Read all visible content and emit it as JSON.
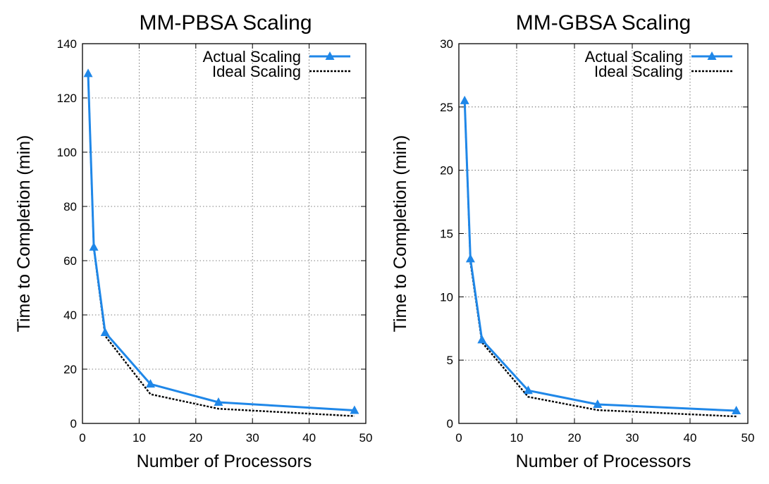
{
  "chart_data": [
    {
      "type": "line",
      "title": "MM-PBSA Scaling",
      "xlabel": "Number of Processors",
      "ylabel": "Time to Completion (min)",
      "xlim": [
        0,
        50
      ],
      "ylim": [
        0,
        140
      ],
      "xticks": [
        0,
        10,
        20,
        30,
        40,
        50
      ],
      "yticks": [
        0,
        20,
        40,
        60,
        80,
        100,
        120,
        140
      ],
      "grid": true,
      "legend_position": "top-right",
      "x": [
        1,
        2,
        4,
        12,
        24,
        48
      ],
      "series": [
        {
          "name": "Actual Scaling",
          "style": "solid-triangle",
          "color": "#1f87e8",
          "values": [
            129,
            65,
            33.5,
            14.5,
            7.8,
            4.8
          ]
        },
        {
          "name": "Ideal Scaling",
          "style": "dashed",
          "color": "#000000",
          "values": [
            129,
            64.5,
            32.25,
            10.75,
            5.4,
            2.7
          ]
        }
      ]
    },
    {
      "type": "line",
      "title": "MM-GBSA Scaling",
      "xlabel": "Number of Processors",
      "ylabel": "Time to Completion (min)",
      "xlim": [
        0,
        50
      ],
      "ylim": [
        0,
        30
      ],
      "xticks": [
        0,
        10,
        20,
        30,
        40,
        50
      ],
      "yticks": [
        0,
        5,
        10,
        15,
        20,
        25,
        30
      ],
      "grid": true,
      "legend_position": "top-right",
      "x": [
        1,
        2,
        4,
        12,
        24,
        48
      ],
      "series": [
        {
          "name": "Actual Scaling",
          "style": "solid-triangle",
          "color": "#1f87e8",
          "values": [
            25.5,
            13,
            6.6,
            2.6,
            1.5,
            1.0
          ]
        },
        {
          "name": "Ideal Scaling",
          "style": "dashed",
          "color": "#000000",
          "values": [
            25.5,
            12.75,
            6.4,
            2.1,
            1.05,
            0.55
          ]
        }
      ]
    }
  ]
}
